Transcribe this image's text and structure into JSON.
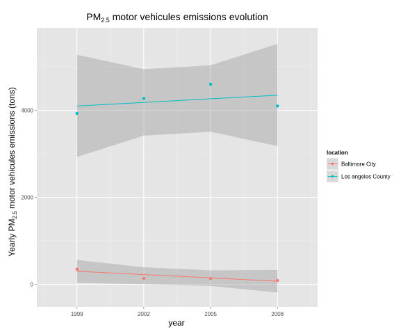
{
  "chart_data": {
    "type": "scatter",
    "title_main": "PM",
    "title_sub": "2.5",
    "title_rest": " motor vehicules emissions evolution",
    "xlabel": "year",
    "ylabel_main": "Yearly PM",
    "ylabel_sub": "2.5",
    "ylabel_rest": " motor vehicules emissions (tons)",
    "x_ticks": [
      "1999",
      "2002",
      "2005",
      "2008"
    ],
    "y_ticks": [
      "0",
      "2000",
      "4000"
    ],
    "xlim": [
      1997.2,
      2009.8
    ],
    "ylim": [
      -520,
      5900
    ],
    "grid": true,
    "legend": {
      "title": "location",
      "placement": "right",
      "entries": [
        "Baltimore City",
        "Los angeles County"
      ]
    },
    "series": [
      {
        "name": "Baltimore City",
        "color": "#F8766D",
        "points": [
          {
            "x": 1999,
            "y": 346.8
          },
          {
            "x": 2002,
            "y": 134.3
          },
          {
            "x": 2005,
            "y": 130.4
          },
          {
            "x": 2008,
            "y": 88.3
          }
        ],
        "fit": [
          {
            "x": 1999,
            "y": 300
          },
          {
            "x": 2008,
            "y": 70
          }
        ],
        "band": [
          {
            "x": 1999,
            "lo": 30,
            "hi": 560
          },
          {
            "x": 2002,
            "lo": 5,
            "hi": 390
          },
          {
            "x": 2005,
            "lo": -40,
            "hi": 320
          },
          {
            "x": 2008,
            "lo": -190,
            "hi": 330
          }
        ]
      },
      {
        "name": "Los angeles County",
        "color": "#00BFC4",
        "points": [
          {
            "x": 1999,
            "y": 3931
          },
          {
            "x": 2002,
            "y": 4274
          },
          {
            "x": 2005,
            "y": 4601
          },
          {
            "x": 2008,
            "y": 4101
          }
        ],
        "fit": [
          {
            "x": 1999,
            "y": 4100
          },
          {
            "x": 2008,
            "y": 4350
          }
        ],
        "band": [
          {
            "x": 1999,
            "lo": 2930,
            "hi": 5280
          },
          {
            "x": 2002,
            "lo": 3420,
            "hi": 4950
          },
          {
            "x": 2005,
            "lo": 3510,
            "hi": 5040
          },
          {
            "x": 2008,
            "lo": 3180,
            "hi": 5530
          }
        ]
      }
    ]
  }
}
